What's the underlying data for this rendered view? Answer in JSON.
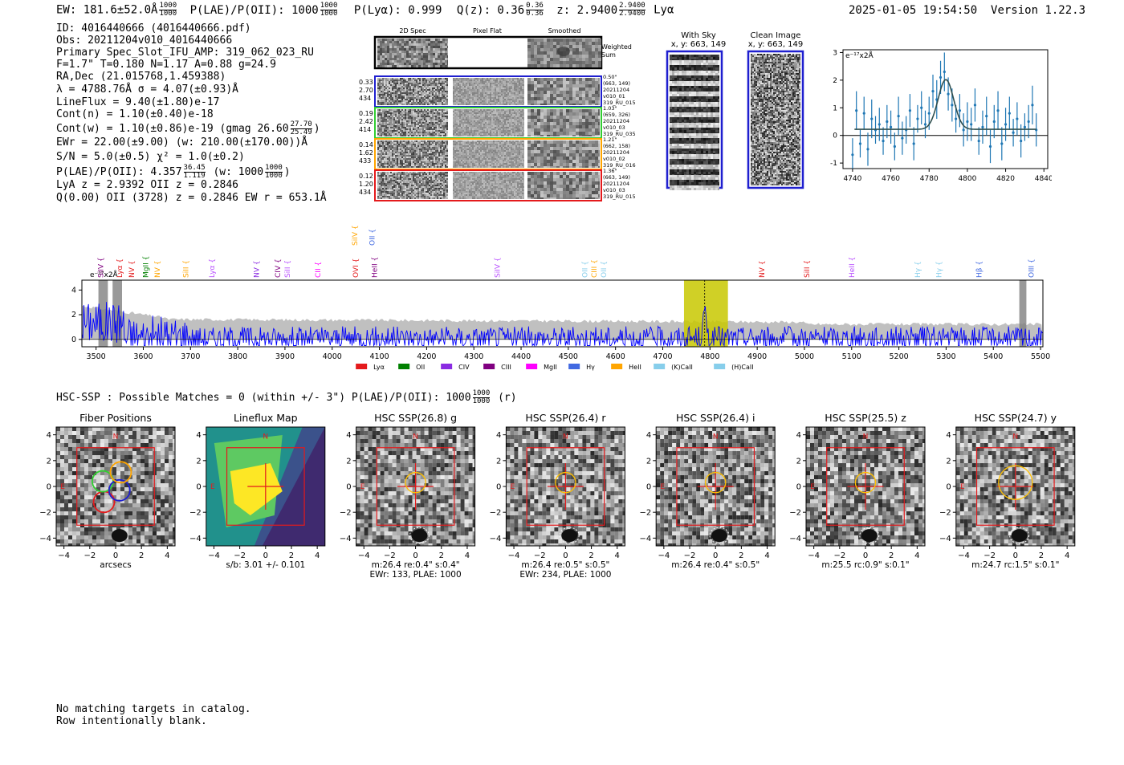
{
  "header": {
    "left": {
      "ew": "EW: 181.6±52.0Å",
      "ew_num": "1000",
      "ew_den": "1000",
      "plae_label": "P(LAE)/P(OII): 1000",
      "plya": "P(Lyα): 0.999",
      "qz": "Q(z): 0.36",
      "qz_num": "0.36",
      "qz_den": "0.36",
      "z": "z: 2.9400",
      "z_num": "2.9400",
      "z_den": "2.9400",
      "lya": "Lyα"
    },
    "datetime": "2025-01-05 19:54:50",
    "version": "Version 1.22.3"
  },
  "info": {
    "id": "ID: 4016440666 (4016440666.pdf)",
    "obs": "Obs: 20211204v010_4016440666",
    "primary": "Primary Spec_Slot_IFU_AMP: 319_062_023_RU",
    "fwhm": "F=1.7\"  T=0.180  N=1.17  A=0.88  g=24.9",
    "radec": "RA,Dec (21.015768,1.459388)",
    "lambda": "λ = 4788.76Å   σ = 4.07(±0.93)Å",
    "lineflux": "LineFlux = 9.40(±1.80)e-17",
    "contn": "Cont(n) = 1.10(±0.40)e-18",
    "contw": "Cont(w) = 1.10(±0.86)e-19 (gmag 26.60",
    "contw_num": "27.70",
    "contw_den": "25.49",
    "contw_close": ")",
    "ewr": "EWr = 22.00(±9.00) (w: 210.00(±170.00))Å",
    "sn": "S/N = 5.0(±0.5)  χ² = 1.0(±0.2)",
    "plae": "P(LAE)/P(OII): 4.357",
    "plae_num": "36.45",
    "plae_den": "1.119",
    "plae_w": "(w: 1000",
    "plae_w_num": "1000",
    "plae_w_den": "1000",
    "plae_w_close": ")",
    "lyaz": "LyA z = 2.9392  OII z = 0.2846",
    "q": "Q(0.00) OII (3728) z = 0.2846  EW r = 653.1Å"
  },
  "cutouts": {
    "col_headers": [
      "2D Spec",
      "Pixel Flat",
      "Smoothed"
    ],
    "weighted_sum": [
      "Weighted",
      "Sum"
    ],
    "rows": [
      {
        "left": [
          "0.33",
          "2.70",
          "434"
        ],
        "right": [
          "0.50\"",
          "(663, 149)",
          "20211204",
          "v010_01",
          "319_RU_015"
        ],
        "color": "#1f1fcf"
      },
      {
        "left": [
          "0.19",
          "2.42",
          "414"
        ],
        "right": [
          "1.03\"",
          "(659, 326)",
          "20211204",
          "v010_03",
          "319_RU_035"
        ],
        "color": "#32cd32"
      },
      {
        "left": [
          "0.14",
          "1.62",
          "433"
        ],
        "right": [
          "1.21\"",
          "(662, 158)",
          "20211204",
          "v010_02",
          "319_RU_016"
        ],
        "color": "#ffa500"
      },
      {
        "left": [
          "0.12",
          "1.20",
          "434"
        ],
        "right": [
          "1.36\"",
          "(663, 149)",
          "20211204",
          "v010_03",
          "319_RU_015"
        ],
        "color": "#e41a1c"
      }
    ],
    "with_sky": [
      "With Sky",
      "x, y: 663, 149"
    ],
    "clean": [
      "Clean Image",
      "x, y: 663, 149"
    ]
  },
  "fit_chart": {
    "type": "scatter",
    "ylabel_unit": "e⁻¹⁷x2Å",
    "xlim": [
      4735,
      4842
    ],
    "ylim": [
      -1.2,
      3.1
    ],
    "xticks": [
      4740,
      4760,
      4780,
      4800,
      4820,
      4840
    ],
    "yticks": [
      -1,
      0,
      1,
      2,
      3
    ],
    "fit_center": 4788.76,
    "fit_sigma": 4.07,
    "fit_amp": 1.8,
    "fit_cont": 0.22,
    "x": [
      4740,
      4742,
      4744,
      4746,
      4748,
      4750,
      4752,
      4754,
      4756,
      4758,
      4760,
      4762,
      4764,
      4766,
      4768,
      4770,
      4772,
      4774,
      4776,
      4778,
      4780,
      4782,
      4784,
      4786,
      4788,
      4790,
      4792,
      4794,
      4796,
      4798,
      4800,
      4802,
      4804,
      4806,
      4808,
      4810,
      4812,
      4814,
      4816,
      4818,
      4820,
      4822,
      4824,
      4826,
      4828,
      4830,
      4832,
      4834,
      4836
    ],
    "y": [
      -0.7,
      0.9,
      -0.3,
      0.8,
      -0.5,
      0.6,
      0.2,
      0.4,
      -0.2,
      0.5,
      0.3,
      -0.4,
      0.7,
      -0.1,
      0.2,
      0.9,
      -0.3,
      0.6,
      1.0,
      0.4,
      0.8,
      1.6,
      1.3,
      2.1,
      2.3,
      1.5,
      1.1,
      0.6,
      0.9,
      0.2,
      0.5,
      0.4,
      1.1,
      -0.2,
      0.3,
      0.7,
      -0.4,
      0.5,
      0.9,
      -0.3,
      0.4,
      0.8,
      0.1,
      0.6,
      -0.2,
      0.3,
      0.5,
      1.1,
      0.2
    ],
    "err": [
      0.6,
      0.7,
      0.5,
      0.6,
      0.6,
      0.7,
      0.5,
      0.6,
      0.5,
      0.6,
      0.6,
      0.5,
      0.7,
      0.6,
      0.5,
      0.6,
      0.6,
      0.5,
      0.6,
      0.5,
      0.6,
      0.6,
      0.7,
      0.6,
      0.7,
      0.6,
      0.6,
      0.5,
      0.6,
      0.6,
      0.7,
      0.6,
      0.6,
      0.5,
      0.6,
      0.7,
      0.6,
      0.6,
      0.7,
      0.6,
      0.6,
      0.6,
      0.5,
      0.6,
      0.6,
      0.5,
      0.6,
      0.7,
      0.6
    ]
  },
  "spectrum_chart": {
    "type": "line",
    "ylabel_unit": "e⁻¹⁷x2Å",
    "xlim": [
      3470,
      5505
    ],
    "ylim": [
      -0.6,
      4.8
    ],
    "xticks": [
      3500,
      3600,
      3700,
      3800,
      3900,
      4000,
      4100,
      4200,
      4300,
      4400,
      4500,
      4600,
      4700,
      4800,
      4900,
      5000,
      5100,
      5200,
      5300,
      5400,
      5500
    ],
    "yticks": [
      0,
      2,
      4
    ],
    "highlight_band": [
      4745,
      4838
    ],
    "highlight_center": 4788.76,
    "masked": [
      [
        3505,
        3525
      ],
      [
        3535,
        3555
      ],
      [
        5455,
        5470
      ]
    ],
    "line_labels": [
      {
        "name": "SiIV",
        "x": 3510,
        "color": "#800080"
      },
      {
        "name": "Lyα",
        "x": 3550,
        "color": "#e41a1c"
      },
      {
        "name": "NV",
        "x": 3575,
        "color": "#e41a1c"
      },
      {
        "name": "MgII",
        "x": 3605,
        "color": "#008000"
      },
      {
        "name": "NV",
        "x": 3630,
        "color": "#ffa500"
      },
      {
        "name": "SiII",
        "x": 3690,
        "color": "#ffa500"
      },
      {
        "name": "Lyα",
        "x": 3745,
        "color": "#b84fff"
      },
      {
        "name": "NV",
        "x": 3840,
        "color": "#8a2be2"
      },
      {
        "name": "CIV",
        "x": 3885,
        "color": "#800080"
      },
      {
        "name": "SiII",
        "x": 3905,
        "color": "#b84fff"
      },
      {
        "name": "CII",
        "x": 3970,
        "color": "#ff00ff"
      },
      {
        "name": "OVI",
        "x": 4050,
        "color": "#e41a1c"
      },
      {
        "name": "HeII",
        "x": 4090,
        "color": "#800080"
      },
      {
        "name": "SiIV",
        "x": 4350,
        "color": "#b84fff"
      },
      {
        "name": "OII",
        "x": 4535,
        "color": "#87ceeb"
      },
      {
        "name": "CIII",
        "x": 4555,
        "color": "#ffa500"
      },
      {
        "name": "OII",
        "x": 4575,
        "color": "#87ceeb"
      },
      {
        "name": "NV",
        "x": 4910,
        "color": "#e41a1c"
      },
      {
        "name": "SiII",
        "x": 5005,
        "color": "#e41a1c"
      },
      {
        "name": "HeII",
        "x": 5100,
        "color": "#b84fff"
      },
      {
        "name": "Hγ",
        "x": 5240,
        "color": "#87ceeb"
      },
      {
        "name": "Hγ",
        "x": 5285,
        "color": "#87ceeb"
      },
      {
        "name": "Hβ",
        "x": 5370,
        "color": "#4169e1"
      },
      {
        "name": "OIII",
        "x": 5480,
        "color": "#4169e1"
      }
    ],
    "top_labels": [
      {
        "name": "SiIV",
        "x": 4048,
        "color": "#ffa500"
      },
      {
        "name": "OII",
        "x": 4085,
        "color": "#4169e1"
      }
    ],
    "legend": [
      {
        "name": "Lyα",
        "color": "#e41a1c"
      },
      {
        "name": "OII",
        "color": "#008000"
      },
      {
        "name": "CIV",
        "color": "#8a2be2"
      },
      {
        "name": "CIII",
        "color": "#800080"
      },
      {
        "name": "MgII",
        "color": "#ff00ff"
      },
      {
        "name": "Hγ",
        "color": "#4169e1"
      },
      {
        "name": "HeII",
        "color": "#ffa500"
      },
      {
        "name": "(K)CaII",
        "color": "#87ceeb"
      },
      {
        "name": "(H)CaII",
        "color": "#87ceeb"
      }
    ]
  },
  "hsc": {
    "summary": "HSC-SSP : Possible Matches = 0 (within +/- 3\")  P(LAE)/P(OII): 1000",
    "summary_num": "1000",
    "summary_den": "1000",
    "summary_tail": "(r)",
    "panels": [
      {
        "title": "Fiber Positions",
        "kind": "fiber",
        "caption": [
          "arcsecs"
        ]
      },
      {
        "title": "Lineflux Map",
        "kind": "lineflux",
        "caption": [
          "s/b: 3.01 +/- 0.101"
        ]
      },
      {
        "title": "HSC SSP(26.8) g",
        "kind": "img",
        "r": 0.9,
        "caption": [
          "m:26.4  re:0.4\"  s:0.4\"",
          "EWr: 133, PLAE: 1000"
        ]
      },
      {
        "title": "HSC SSP(26.4) r",
        "kind": "img",
        "r": 0.9,
        "caption": [
          "m:26.4  re:0.5\"  s:0.5\"",
          "EWr: 234, PLAE: 1000"
        ]
      },
      {
        "title": "HSC SSP(26.4) i",
        "kind": "img",
        "r": 0.9,
        "caption": [
          "m:26.4  re:0.4\"  s:0.5\""
        ]
      },
      {
        "title": "HSC SSP(25.5) z",
        "kind": "img",
        "r": 0.9,
        "caption": [
          "m:25.5 rc:0.9\"  s:0.1\""
        ]
      },
      {
        "title": "HSC SSP(24.7) y",
        "kind": "img",
        "r": 1.5,
        "caption": [
          "m:24.7 rc:1.5\"  s:0.1\""
        ]
      }
    ],
    "ticks": [
      -4,
      -2,
      0,
      2,
      4
    ],
    "north": "N",
    "east": "E"
  },
  "footer": [
    "No matching targets in catalog.",
    "Row intentionally blank."
  ]
}
